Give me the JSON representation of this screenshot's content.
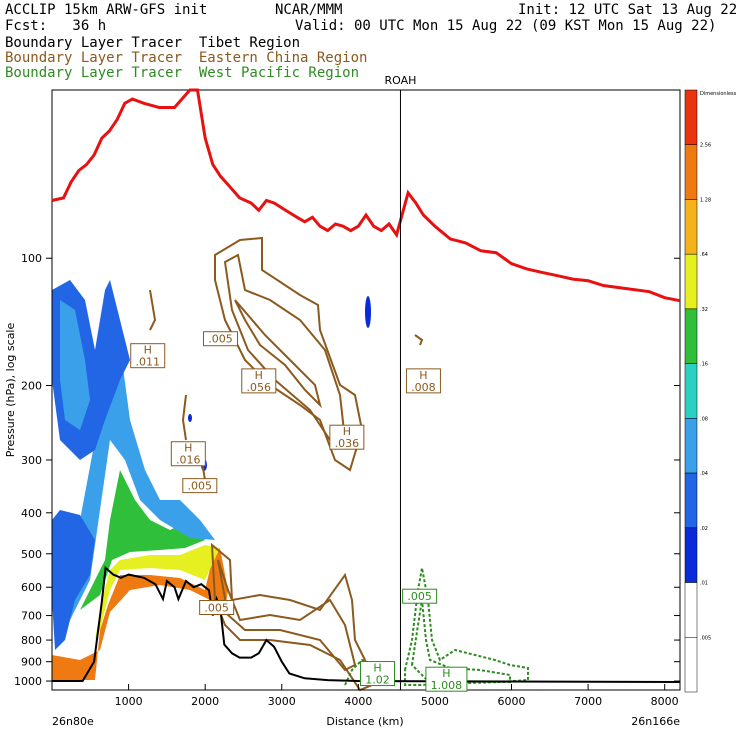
{
  "header": {
    "model": "ACCLIP 15km ARW-GFS init",
    "org": "NCAR/MMM",
    "init": "Init: 12 UTC Sat 13 Aug 22",
    "fcst": "Fcst:   36 h",
    "valid": "Valid: 00 UTC Mon 15 Aug 22 (09 KST Mon 15 Aug 22)",
    "legend": [
      {
        "text": "Boundary Layer Tracer  Tibet Region",
        "color": "#000000"
      },
      {
        "text": "Boundary Layer Tracer  Eastern China Region",
        "color": "#8b5a1e"
      },
      {
        "text": "Boundary Layer Tracer  West Pacific Region",
        "color": "#2e8b22"
      }
    ]
  },
  "chart_data": {
    "type": "cross-section",
    "ylabel": "Pressure (hPa), log scale",
    "xlabel": "Distance (km)",
    "x_left_label": "26n80e",
    "x_right_label": "26n166e",
    "xlim": [
      0,
      8200
    ],
    "ylim": [
      1050,
      40
    ],
    "y_scale": "log",
    "xticks": [
      1000,
      2000,
      3000,
      4000,
      5000,
      6000,
      7000,
      8000
    ],
    "yticks": [
      100,
      200,
      300,
      400,
      500,
      600,
      700,
      800,
      900,
      1000
    ],
    "vertical_marker": {
      "label": "ROAH",
      "x": 4550
    },
    "labels": [
      {
        "text": "H",
        "value": ".011",
        "x": 1250,
        "p": 170,
        "color": "#8b5a1e"
      },
      {
        "text": "",
        "value": ".005",
        "x": 2200,
        "p": 155,
        "color": "#8b5a1e"
      },
      {
        "text": "H",
        "value": ".056",
        "x": 2700,
        "p": 195,
        "color": "#8b5a1e"
      },
      {
        "text": "H",
        "value": ".008",
        "x": 4850,
        "p": 195,
        "color": "#8b5a1e"
      },
      {
        "text": "H",
        "value": ".036",
        "x": 3850,
        "p": 265,
        "color": "#8b5a1e"
      },
      {
        "text": "H",
        "value": ".016",
        "x": 1780,
        "p": 290,
        "color": "#8b5a1e"
      },
      {
        "text": "",
        "value": ".005",
        "x": 1930,
        "p": 345,
        "color": "#8b5a1e"
      },
      {
        "text": "",
        "value": ".005",
        "x": 2150,
        "p": 670,
        "color": "#8b5a1e"
      },
      {
        "text": "",
        "value": ".005",
        "x": 4800,
        "p": 630,
        "color": "#2e8b22"
      },
      {
        "text": "H",
        "value": "1.02",
        "x": 4250,
        "p": 960,
        "color": "#2e8b22"
      },
      {
        "text": "H",
        "value": "1.008",
        "x": 5150,
        "p": 990,
        "color": "#2e8b22"
      }
    ],
    "colorbar": {
      "title": "Dimensionless",
      "levels": [
        ".005",
        ".01",
        ".02",
        ".04",
        ".08",
        ".16",
        ".32",
        ".64",
        "1.28",
        "2.56"
      ],
      "colors": [
        "#ffffff",
        "#ffffff",
        "#0a2bd9",
        "#2266e6",
        "#3aa0ea",
        "#2ad0c0",
        "#2fbf3a",
        "#e6ef1f",
        "#f5b21a",
        "#f07a12",
        "#e9340f"
      ]
    },
    "series": [
      {
        "name": "Tibet Region",
        "color": "#000000",
        "points": [
          [
            0,
            1000
          ],
          [
            400,
            1000
          ],
          [
            550,
            900
          ],
          [
            650,
            650
          ],
          [
            700,
            540
          ],
          [
            800,
            560
          ],
          [
            900,
            570
          ],
          [
            1000,
            560
          ],
          [
            1200,
            570
          ],
          [
            1350,
            590
          ],
          [
            1450,
            640
          ],
          [
            1500,
            580
          ],
          [
            1600,
            600
          ],
          [
            1650,
            640
          ],
          [
            1750,
            580
          ],
          [
            1850,
            600
          ],
          [
            1950,
            590
          ],
          [
            2050,
            610
          ],
          [
            2100,
            700
          ],
          [
            2150,
            640
          ],
          [
            2200,
            680
          ],
          [
            2250,
            820
          ],
          [
            2350,
            860
          ],
          [
            2450,
            880
          ],
          [
            2600,
            880
          ],
          [
            2700,
            860
          ],
          [
            2800,
            800
          ],
          [
            2900,
            830
          ],
          [
            3000,
            900
          ],
          [
            3100,
            960
          ],
          [
            3300,
            985
          ],
          [
            3600,
            995
          ],
          [
            4000,
            1000
          ],
          [
            8200,
            1005
          ]
        ]
      },
      {
        "name": "Tropopause",
        "color": "#e81010",
        "points": [
          [
            0,
            73
          ],
          [
            150,
            72
          ],
          [
            250,
            66
          ],
          [
            350,
            62
          ],
          [
            450,
            60
          ],
          [
            550,
            57
          ],
          [
            650,
            52
          ],
          [
            750,
            50
          ],
          [
            850,
            47
          ],
          [
            950,
            43
          ],
          [
            1050,
            42
          ],
          [
            1200,
            43
          ],
          [
            1400,
            44
          ],
          [
            1600,
            44
          ],
          [
            1800,
            40
          ],
          [
            1900,
            38
          ],
          [
            2000,
            52
          ],
          [
            2100,
            60
          ],
          [
            2200,
            64
          ],
          [
            2300,
            67
          ],
          [
            2450,
            72
          ],
          [
            2600,
            74
          ],
          [
            2700,
            77
          ],
          [
            2800,
            73
          ],
          [
            2900,
            74
          ],
          [
            3000,
            76
          ],
          [
            3100,
            78
          ],
          [
            3200,
            80
          ],
          [
            3300,
            82
          ],
          [
            3400,
            80
          ],
          [
            3500,
            84
          ],
          [
            3600,
            86
          ],
          [
            3700,
            83
          ],
          [
            3800,
            84
          ],
          [
            3900,
            86
          ],
          [
            4000,
            84
          ],
          [
            4100,
            79
          ],
          [
            4200,
            84
          ],
          [
            4300,
            86
          ],
          [
            4400,
            83
          ],
          [
            4500,
            88
          ],
          [
            4650,
            70
          ],
          [
            4750,
            74
          ],
          [
            4850,
            79
          ],
          [
            5000,
            84
          ],
          [
            5200,
            90
          ],
          [
            5400,
            92
          ],
          [
            5600,
            96
          ],
          [
            5800,
            97
          ],
          [
            6000,
            103
          ],
          [
            6200,
            106
          ],
          [
            6400,
            108
          ],
          [
            6600,
            110
          ],
          [
            6800,
            112
          ],
          [
            7000,
            113
          ],
          [
            7200,
            116
          ],
          [
            7500,
            118
          ],
          [
            7800,
            120
          ],
          [
            8000,
            124
          ],
          [
            8200,
            126
          ]
        ]
      }
    ]
  }
}
